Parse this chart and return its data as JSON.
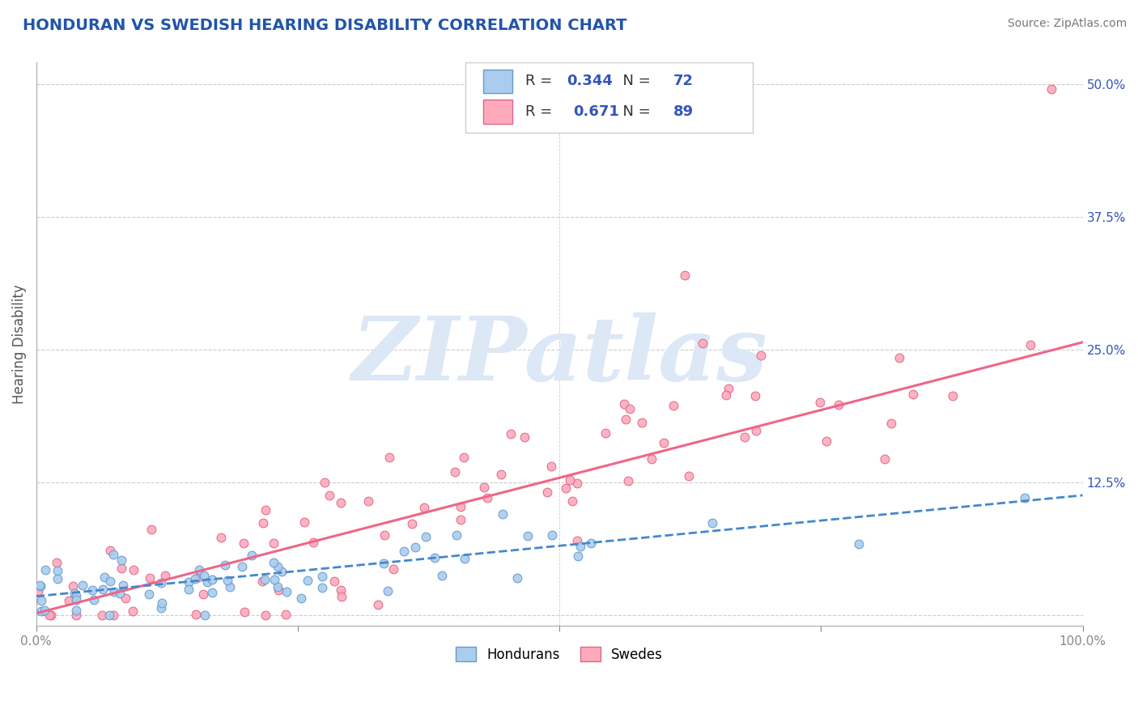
{
  "title": "HONDURAN VS SWEDISH HEARING DISABILITY CORRELATION CHART",
  "source": "Source: ZipAtlas.com",
  "ylabel": "Hearing Disability",
  "xlim": [
    0.0,
    1.0
  ],
  "ylim": [
    -0.01,
    0.52
  ],
  "xticks": [
    0.0,
    0.25,
    0.5,
    0.75,
    1.0
  ],
  "xticklabels": [
    "0.0%",
    "",
    "",
    "",
    "100.0%"
  ],
  "ytick_vals": [
    0.0,
    0.125,
    0.25,
    0.375,
    0.5
  ],
  "ytick_labels": [
    "",
    "12.5%",
    "25.0%",
    "37.5%",
    "50.0%"
  ],
  "title_color": "#2255aa",
  "title_fontsize": 14,
  "background_color": "#ffffff",
  "grid_color": "#cccccc",
  "honduran_color": "#aaccee",
  "honduran_edge": "#6699cc",
  "swedish_color": "#ffaabc",
  "swedish_edge": "#dd6688",
  "honduran_R": 0.344,
  "honduran_N": 72,
  "swedish_R": 0.671,
  "swedish_N": 89,
  "honduran_line_color": "#4488cc",
  "swedish_line_color": "#ee6688",
  "legend_color": "#3355bb",
  "watermark_color": "#dce8f5",
  "watermark_text": "ZIPatlas",
  "swe_slope": 0.255,
  "swe_intercept": 0.002,
  "hon_slope": 0.095,
  "hon_intercept": 0.018
}
